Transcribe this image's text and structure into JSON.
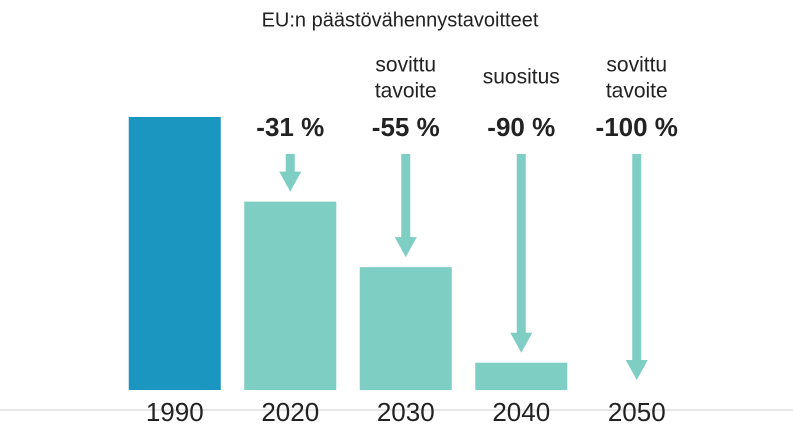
{
  "chart_data": {
    "type": "bar",
    "title": "EU:n päästövähennystavoitteet",
    "categories": [
      "1990",
      "2020",
      "2030",
      "2040",
      "2050"
    ],
    "values": [
      0,
      -31,
      -55,
      -90,
      -100
    ],
    "value_labels": [
      null,
      "-31 %",
      "-55 %",
      "-90 %",
      "-100 %"
    ],
    "annotations": [
      null,
      null,
      [
        "sovittu",
        "tavoite"
      ],
      [
        "suositus"
      ],
      [
        "sovittu",
        "tavoite"
      ]
    ],
    "colors": [
      "#1a96c0",
      "#7ecec4",
      "#7ecec4",
      "#7ecec4",
      "#7ecec4"
    ],
    "arrow_color": "#7ecec4",
    "ylim": [
      -100,
      0
    ]
  }
}
